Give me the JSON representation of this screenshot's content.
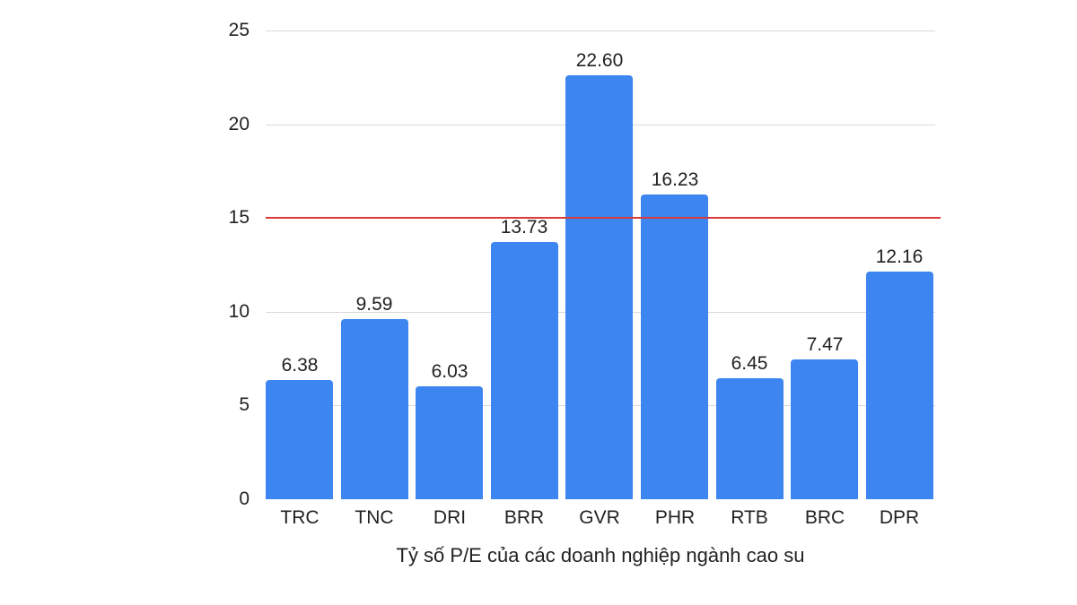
{
  "chart_data": {
    "type": "bar",
    "title": "",
    "xlabel": "Tỷ số P/E của các doanh nghiệp ngành cao su",
    "ylabel": "",
    "categories": [
      "TRC",
      "TNC",
      "DRI",
      "BRR",
      "GVR",
      "PHR",
      "RTB",
      "BRC",
      "DPR"
    ],
    "values": [
      6.38,
      9.59,
      6.03,
      13.73,
      22.6,
      16.23,
      6.45,
      7.47,
      12.16
    ],
    "value_labels": [
      "6.38",
      "9.59",
      "6.03",
      "13.73",
      "22.60",
      "16.23",
      "6.45",
      "7.47",
      "12.16"
    ],
    "ylim": [
      0,
      25
    ],
    "yticks": [
      "0",
      "5",
      "10",
      "15",
      "20",
      "25"
    ],
    "grid": true,
    "reference_line": {
      "y": 15,
      "color": "#d93a3a"
    },
    "bar_color": "#3d85f0",
    "legend": null
  }
}
